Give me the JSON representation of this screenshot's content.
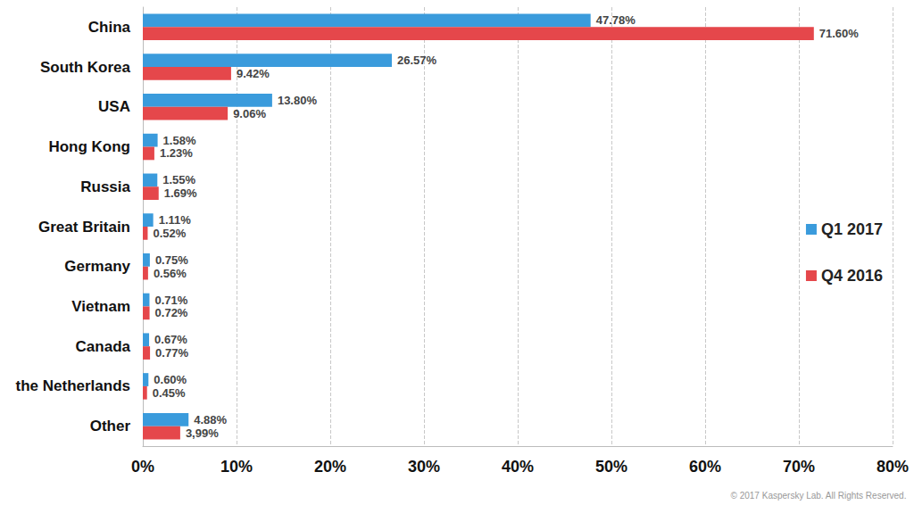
{
  "chart_data": {
    "type": "bar",
    "orientation": "horizontal",
    "categories": [
      "China",
      "South Korea",
      "USA",
      "Hong Kong",
      "Russia",
      "Great Britain",
      "Germany",
      "Vietnam",
      "Canada",
      "the Netherlands",
      "Other"
    ],
    "series": [
      {
        "name": "Q1 2017",
        "color": "#3a9bdc",
        "values": [
          47.78,
          26.57,
          13.8,
          1.58,
          1.55,
          1.11,
          0.75,
          0.71,
          0.67,
          0.6,
          4.88
        ],
        "value_labels": [
          "47.78%",
          "26.57%",
          "13.80%",
          "1.58%",
          "1.55%",
          "1.11%",
          "0.75%",
          "0.71%",
          "0.67%",
          "0.60%",
          "4.88%"
        ]
      },
      {
        "name": "Q4 2016",
        "color": "#e5474b",
        "values": [
          71.6,
          9.42,
          9.06,
          1.23,
          1.69,
          0.52,
          0.56,
          0.72,
          0.77,
          0.45,
          3.99
        ],
        "value_labels": [
          "71.60%",
          "9.42%",
          "9.06%",
          "1.23%",
          "1.69%",
          "0.52%",
          "0.56%",
          "0.72%",
          "0.77%",
          "0.45%",
          "3,99%"
        ]
      }
    ],
    "xlim": [
      0,
      80
    ],
    "xticks": [
      {
        "value": 0,
        "label": "0%"
      },
      {
        "value": 10,
        "label": "10%"
      },
      {
        "value": 20,
        "label": "20%"
      },
      {
        "value": 30,
        "label": "30%"
      },
      {
        "value": 40,
        "label": "40%"
      },
      {
        "value": 50,
        "label": "50%"
      },
      {
        "value": 60,
        "label": "60%"
      },
      {
        "value": 70,
        "label": "70%"
      },
      {
        "value": 80,
        "label": "80%"
      }
    ],
    "grid": true,
    "data_labels": true,
    "legend": "right",
    "annotations": [
      "© 2017 Kaspersky Lab. All Rights Reserved."
    ]
  }
}
